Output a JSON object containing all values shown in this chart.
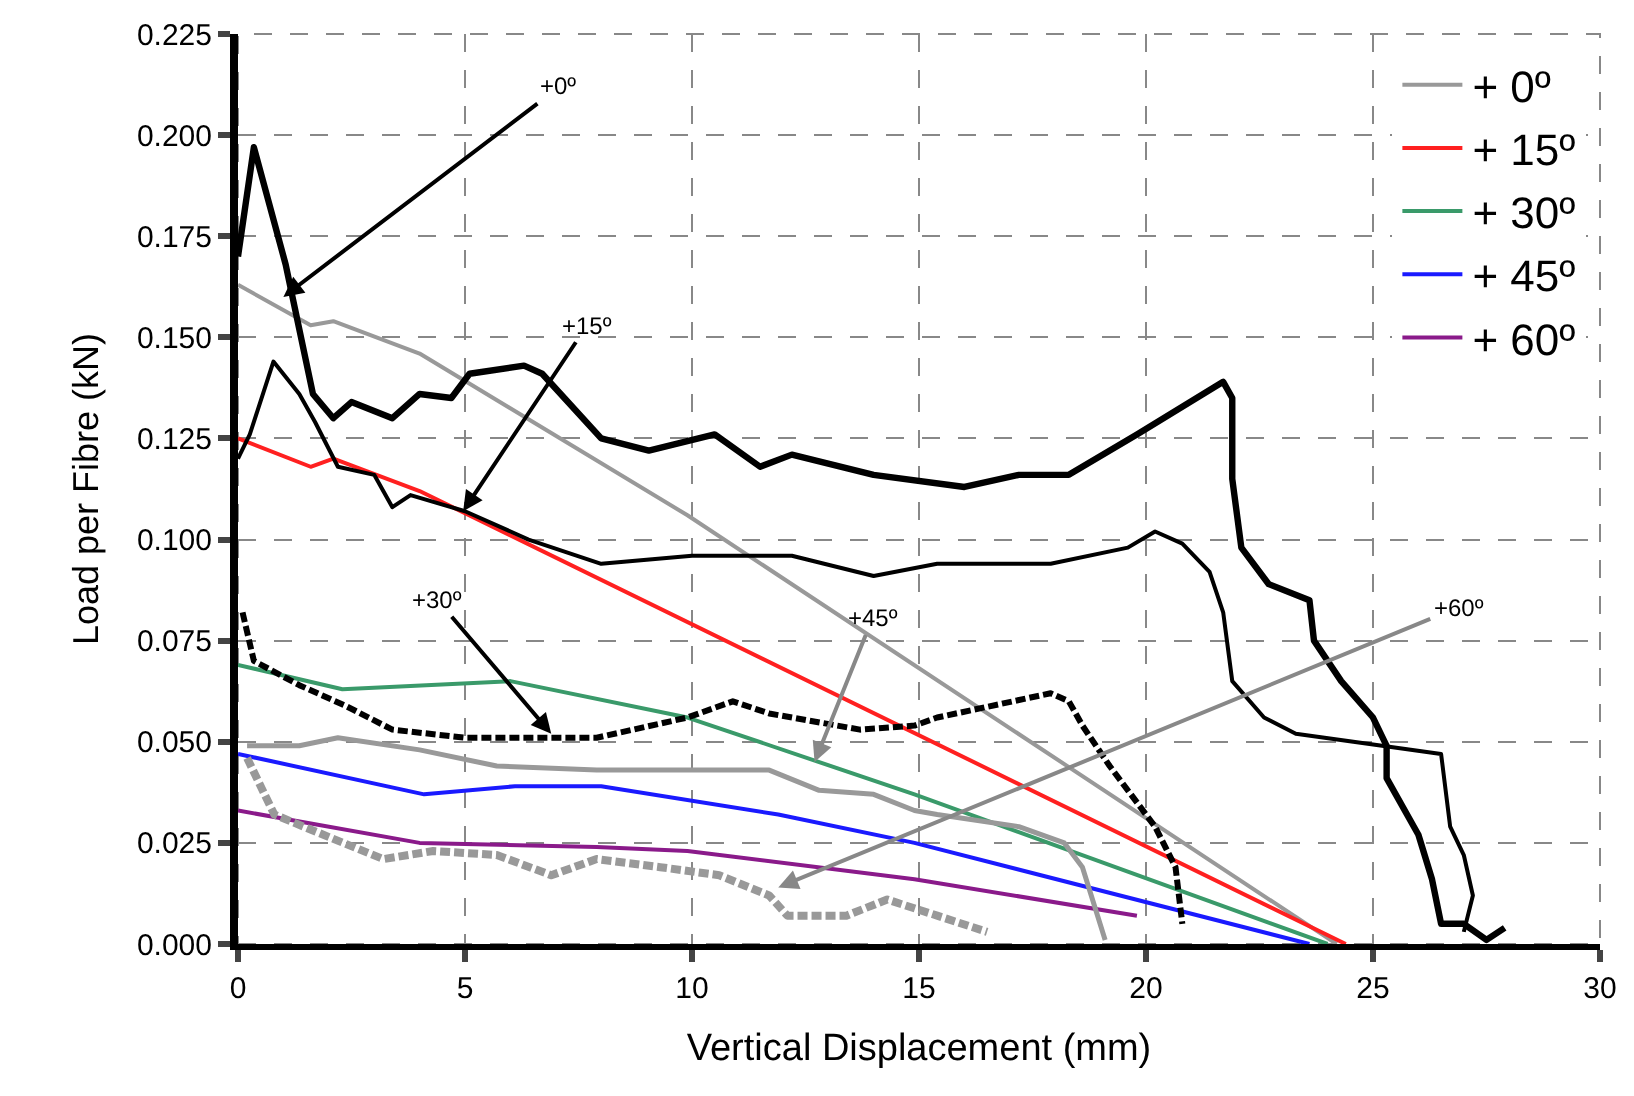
{
  "chart_data": {
    "type": "line",
    "xlabel": "Vertical Displacement (mm)",
    "ylabel": "Load per Fibre (kN)",
    "xlim": [
      0,
      30
    ],
    "xticks": [
      0,
      5,
      10,
      15,
      20,
      25,
      30
    ],
    "ylim": [
      0,
      0.225
    ],
    "yticks": [
      {
        "value": 0,
        "label": "0.000"
      },
      {
        "value": 0.025,
        "label": "0.025"
      },
      {
        "value": 0.05,
        "label": "0.050"
      },
      {
        "value": 0.075,
        "label": "0.075"
      },
      {
        "value": 0.1,
        "label": "0.100"
      },
      {
        "value": 0.125,
        "label": "0.125"
      },
      {
        "value": 0.15,
        "label": "0.150"
      },
      {
        "value": 0.175,
        "label": "0.175"
      },
      {
        "value": 0.2,
        "label": "0.200"
      },
      {
        "value": 0.225,
        "label": "0.225"
      }
    ],
    "grid": true,
    "legend": "top right",
    "marker": "none",
    "series": [
      {
        "name": "+ 0º",
        "color": "#999999",
        "line_style": "solid",
        "x": [
          0,
          1.6,
          2.1,
          4.0,
          9.9,
          24.2
        ],
        "values": [
          0.163,
          0.153,
          0.154,
          0.146,
          0.106,
          0
        ]
      },
      {
        "name": "+ 15º",
        "color": "#ff2020",
        "line_style": "solid",
        "x": [
          0,
          1.6,
          2.1,
          4.0,
          24.4
        ],
        "values": [
          0.125,
          0.118,
          0.12,
          0.112,
          0
        ]
      },
      {
        "name": "+ 30º",
        "color": "#3a9a6a",
        "line_style": "solid",
        "x": [
          0,
          2.3,
          6.0,
          9.9,
          14.9,
          24.0
        ],
        "values": [
          0.069,
          0.063,
          0.065,
          0.056,
          0.037,
          0
        ]
      },
      {
        "name": "+ 45º",
        "color": "#1a1aff",
        "line_style": "solid",
        "x": [
          0,
          4.1,
          6.1,
          8.0,
          11.9,
          14.9,
          23.6
        ],
        "values": [
          0.047,
          0.037,
          0.039,
          0.039,
          0.032,
          0.025,
          0
        ]
      },
      {
        "name": "+ 60º",
        "color": "#8a1a8a",
        "line_style": "solid",
        "x": [
          0,
          4.0,
          7.9,
          9.9,
          14.9,
          19.8
        ],
        "values": [
          0.033,
          0.025,
          0.024,
          0.023,
          0.016,
          0.007
        ]
      },
      {
        "color": "#000000",
        "line_style": "solid",
        "x": [
          0,
          0.35,
          1.05,
          1.65,
          2.1,
          2.5,
          3.4,
          4.0,
          4.7,
          5.1,
          6.3,
          6.7,
          8.0,
          9.05,
          10.5,
          11.5,
          12.2,
          14.0,
          16.0,
          17.2,
          18.3,
          19.8,
          21.7,
          21.9,
          21.9,
          22.1,
          22.7,
          23.6,
          23.7,
          24.3,
          25.0,
          25.3,
          25.3,
          26.0,
          26.3,
          26.5,
          27.0,
          27.5,
          27.9
        ],
        "values": [
          0.17,
          0.197,
          0.168,
          0.136,
          0.13,
          0.134,
          0.13,
          0.136,
          0.135,
          0.141,
          0.143,
          0.141,
          0.125,
          0.122,
          0.126,
          0.118,
          0.121,
          0.116,
          0.113,
          0.116,
          0.116,
          0.126,
          0.139,
          0.135,
          0.115,
          0.098,
          0.089,
          0.085,
          0.075,
          0.065,
          0.056,
          0.049,
          0.041,
          0.027,
          0.016,
          0.005,
          0.005,
          0.001,
          0.004
        ]
      },
      {
        "color": "#000000",
        "line_style": "solid",
        "x": [
          0,
          0.26,
          0.78,
          1.35,
          1.7,
          2.2,
          3.0,
          3.4,
          3.8,
          5.0,
          6.4,
          8.0,
          10.0,
          12.2,
          14.0,
          15.4,
          17.9,
          19.6,
          20.2,
          20.8,
          21.4,
          21.7,
          21.9,
          22.6,
          23.3,
          25.2,
          26.5,
          26.7,
          27.0,
          27.2,
          27.0
        ],
        "values": [
          0.12,
          0.126,
          0.144,
          0.136,
          0.129,
          0.118,
          0.116,
          0.108,
          0.111,
          0.107,
          0.1,
          0.094,
          0.096,
          0.096,
          0.091,
          0.094,
          0.094,
          0.098,
          0.102,
          0.099,
          0.092,
          0.082,
          0.065,
          0.056,
          0.052,
          0.049,
          0.047,
          0.029,
          0.022,
          0.012,
          0.003
        ]
      },
      {
        "color": "#000000",
        "line_style": "dashed",
        "x": [
          0.1,
          0.35,
          1.35,
          2.35,
          3.4,
          5.0,
          7.9,
          9.9,
          10.9,
          11.7,
          13.7,
          14.9,
          15.4,
          17.9,
          18.3,
          18.6,
          19.2,
          20.2,
          20.65,
          20.8
        ],
        "values": [
          0.082,
          0.07,
          0.064,
          0.059,
          0.053,
          0.051,
          0.051,
          0.056,
          0.06,
          0.057,
          0.053,
          0.054,
          0.056,
          0.062,
          0.06,
          0.054,
          0.044,
          0.029,
          0.019,
          0.005
        ]
      },
      {
        "color": "#999999",
        "line_style": "solid",
        "x": [
          0.2,
          1.35,
          2.2,
          4.0,
          5.7,
          7.9,
          9.9,
          11.7,
          12.8,
          14.0,
          14.9,
          15.4,
          17.2,
          18.2,
          18.6,
          19.1
        ],
        "values": [
          0.049,
          0.049,
          0.051,
          0.048,
          0.044,
          0.043,
          0.043,
          0.043,
          0.038,
          0.037,
          0.033,
          0.032,
          0.029,
          0.025,
          0.019,
          0.001
        ]
      },
      {
        "color": "#999999",
        "line_style": "dashed",
        "x": [
          0.2,
          0.8,
          2.1,
          3.2,
          4.3,
          5.7,
          6.9,
          7.9,
          9.3,
          10.6,
          11.7,
          12.1,
          13.4,
          14.3,
          15.4,
          16.5
        ],
        "values": [
          0.046,
          0.032,
          0.026,
          0.021,
          0.023,
          0.022,
          0.017,
          0.021,
          0.019,
          0.017,
          0.012,
          0.007,
          0.007,
          0.011,
          0.007,
          0.003
        ]
      }
    ],
    "annotations": [
      {
        "text": "+0º",
        "x": 1.0,
        "y": 0.16
      },
      {
        "text": "+15º",
        "x": 4.96,
        "y": 0.107
      },
      {
        "text": "+30º",
        "x": 6.9,
        "y": 0.052
      },
      {
        "text": "+45º",
        "x": 12.7,
        "y": 0.045
      },
      {
        "text": "+60º",
        "x": 11.9,
        "y": 0.014
      }
    ]
  }
}
